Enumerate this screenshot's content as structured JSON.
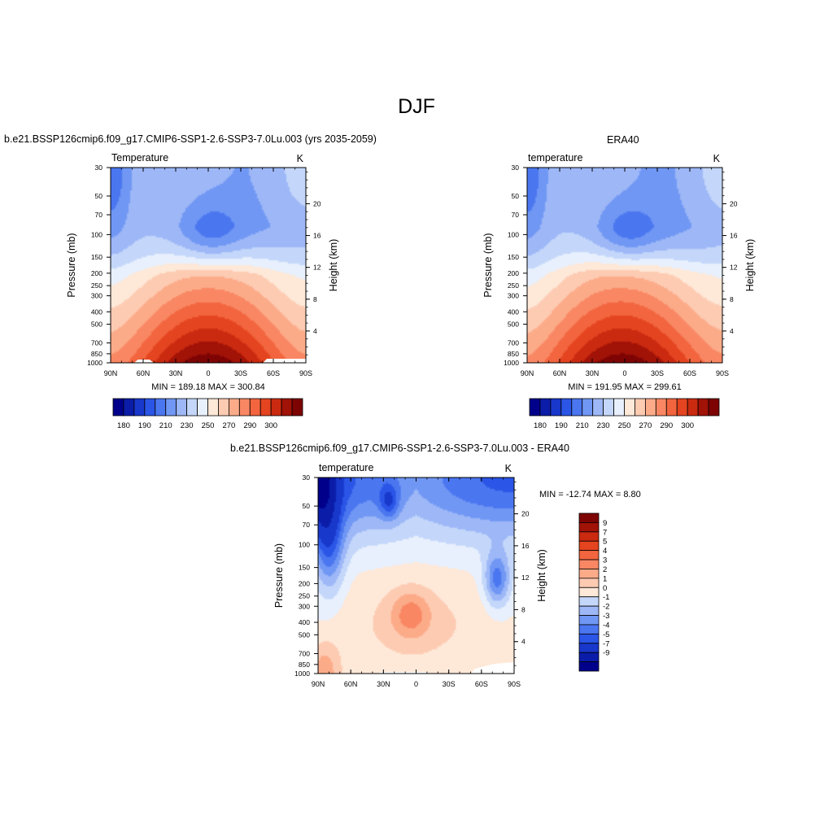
{
  "page": {
    "title": "DJF"
  },
  "colors": {
    "model_obs_levels": [
      "#00008B",
      "#0A1CA8",
      "#1837CB",
      "#2A55E6",
      "#4A76F0",
      "#7097F4",
      "#9DB7F7",
      "#C4D7FA",
      "#E8F0FD",
      "#FEE8D8",
      "#FDCBB2",
      "#FCAB89",
      "#F98763",
      "#F2653E",
      "#E4441F",
      "#CA2A0F",
      "#A11207",
      "#7E0404"
    ],
    "diff_levels": [
      "#00008B",
      "#0A1CA8",
      "#1837CB",
      "#2A55E6",
      "#4A76F0",
      "#7097F4",
      "#9DB7F7",
      "#C4D7FA",
      "#E8F0FD",
      "#FEE8D8",
      "#FDCBB2",
      "#FCAB89",
      "#F98763",
      "#F2653E",
      "#E4441F",
      "#CA2A0F",
      "#A11207",
      "#7E0404"
    ]
  },
  "chart_data": [
    {
      "type": "heatmap",
      "panel_title": "b.e21.BSSP126cmip6.f09_g17.CMIP6-SSP1-2.6-SSP3-7.0Lu.003 (yrs 2035-2059)",
      "field_label": "Temperature",
      "units": "K",
      "ylabel": "Pressure (mb)",
      "y2label": "Height (km)",
      "x_ticks": [
        "90N",
        "60N",
        "30N",
        "0",
        "30S",
        "60S",
        "90S"
      ],
      "y_ticks": [
        "30",
        "50",
        "70",
        "100",
        "150",
        "200",
        "250",
        "300",
        "400",
        "500",
        "700",
        "850",
        "1000"
      ],
      "y2_ticks": [
        "20",
        "16",
        "12",
        "8",
        "4"
      ],
      "min_max_text": "MIN = 189.18  MAX = 300.84",
      "colorbar_labels": [
        "180",
        "190",
        "210",
        "230",
        "250",
        "270",
        "290",
        "300"
      ],
      "min": 189.18,
      "max": 300.84
    },
    {
      "type": "heatmap",
      "panel_title": "ERA40",
      "field_label": "temperature",
      "units": "K",
      "ylabel": "Pressure (mb)",
      "y2label": "Height (km)",
      "x_ticks": [
        "90N",
        "60N",
        "30N",
        "0",
        "30S",
        "60S",
        "90S"
      ],
      "y_ticks": [
        "30",
        "50",
        "70",
        "100",
        "150",
        "200",
        "250",
        "300",
        "400",
        "500",
        "700",
        "850",
        "1000"
      ],
      "y2_ticks": [
        "20",
        "16",
        "12",
        "8",
        "4"
      ],
      "min_max_text": "MIN = 191.95  MAX = 299.61",
      "colorbar_labels": [
        "180",
        "190",
        "210",
        "230",
        "250",
        "270",
        "290",
        "300"
      ],
      "min": 191.95,
      "max": 299.61
    },
    {
      "type": "heatmap",
      "panel_title": "b.e21.BSSP126cmip6.f09_g17.CMIP6-SSP1-2.6-SSP3-7.0Lu.003 - ERA40",
      "field_label": "temperature",
      "units": "K",
      "ylabel": "Pressure (mb)",
      "y2label": "Height (km)",
      "x_ticks": [
        "90N",
        "60N",
        "30N",
        "0",
        "30S",
        "60S",
        "90S"
      ],
      "y_ticks": [
        "30",
        "50",
        "70",
        "100",
        "150",
        "200",
        "250",
        "300",
        "400",
        "500",
        "700",
        "850",
        "1000"
      ],
      "y2_ticks": [
        "20",
        "16",
        "12",
        "8",
        "4"
      ],
      "min_max_text": "MIN = -12.74  MAX =   8.80",
      "colorbar_labels": [
        "9",
        "7",
        "5",
        "4",
        "3",
        "2",
        "1",
        "0",
        "-1",
        "-2",
        "-3",
        "-4",
        "-5",
        "-7",
        "-9"
      ],
      "min": -12.74,
      "max": 8.8
    }
  ]
}
